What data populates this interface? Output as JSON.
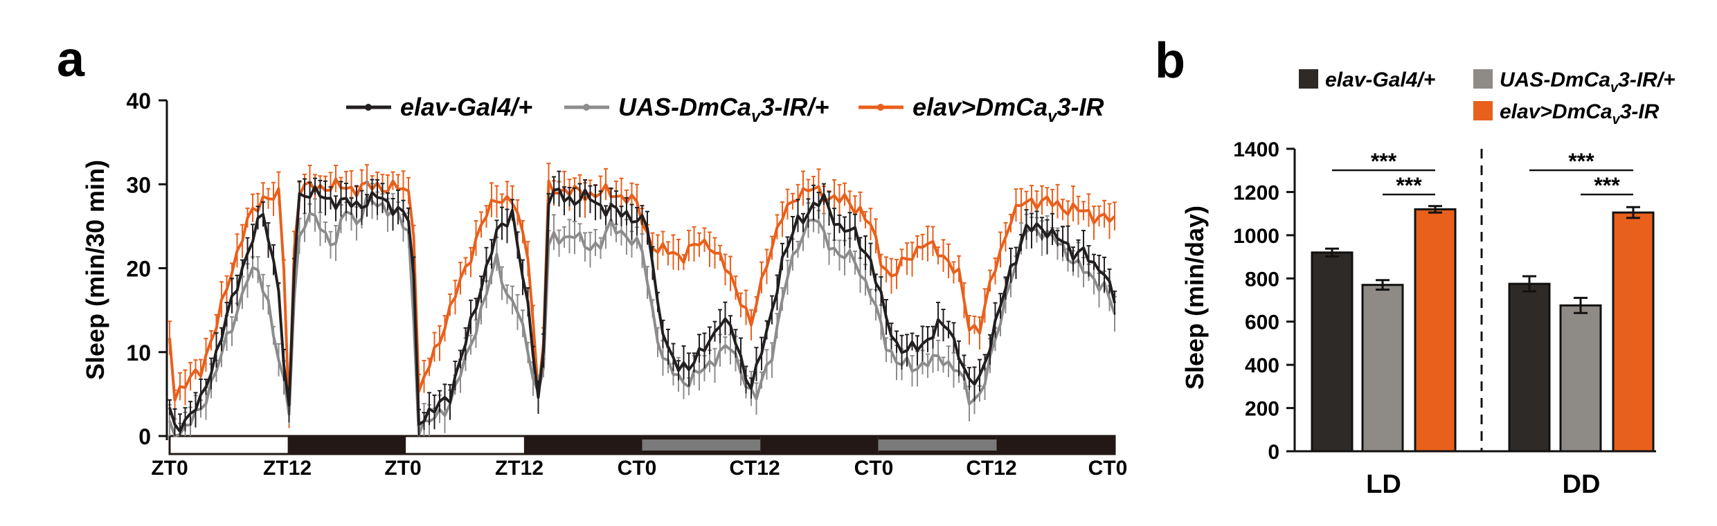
{
  "colors": {
    "axis": "#111111",
    "series_dark": "#231f20",
    "series_gray": "#8c8c8c",
    "series_orange": "#e8601c",
    "bar_dark": "#2e2a28",
    "bar_gray": "#8e8a86",
    "bar_orange": "#e8601c",
    "light_bar": "#ffffff",
    "dark_bar": "#231815",
    "subjective_day_bar": "#7a7a7a"
  },
  "panel_a": {
    "label": "a",
    "chart_data": {
      "type": "line",
      "ylabel": "Sleep (min/30 min)",
      "ylim": [
        0,
        40
      ],
      "yticks": [
        "0",
        "10",
        "20",
        "30",
        "40"
      ],
      "x_tick_labels": [
        "ZT0",
        "ZT12",
        "ZT0",
        "ZT12",
        "CT0",
        "CT12",
        "CT0",
        "CT12",
        "CT0"
      ],
      "legend": [
        {
          "name_main": "elav-Gal4/+",
          "sub": "",
          "tail": ""
        },
        {
          "name_main": "UAS-DmCa",
          "sub": "v",
          "tail": "3-IR/+"
        },
        {
          "name_main": "elav>DmCa",
          "sub": "v",
          "tail": "3-IR"
        }
      ],
      "light_dark_bar": [
        "light",
        "dark",
        "light",
        "dark",
        "subjective-day",
        "dark",
        "subjective-day",
        "dark"
      ],
      "series": [
        {
          "name": "elav-Gal4/+",
          "keyframes": [
            [
              0,
              3
            ],
            [
              0.3,
              0.5
            ],
            [
              1.5,
              2
            ],
            [
              3.0,
              4
            ],
            [
              4.5,
              10
            ],
            [
              6,
              16
            ],
            [
              7.5,
              22
            ],
            [
              9,
              26.5
            ],
            [
              10.5,
              18
            ],
            [
              11.0,
              8
            ],
            [
              11.5,
              3
            ],
            [
              11.8,
              12
            ],
            [
              12.2,
              28.5
            ],
            [
              13,
              29
            ],
            [
              14,
              28.8
            ],
            [
              16,
              28
            ],
            [
              18,
              27.5
            ],
            [
              20,
              28.5
            ],
            [
              22,
              27
            ],
            [
              23.2,
              25.5
            ],
            [
              23.7,
              14
            ],
            [
              24.0,
              2
            ],
            [
              25.5,
              3
            ],
            [
              27,
              5
            ],
            [
              28.5,
              11
            ],
            [
              30,
              18
            ],
            [
              31.5,
              24
            ],
            [
              33,
              26.8
            ],
            [
              34.5,
              15
            ],
            [
              35.5,
              5
            ],
            [
              35.9,
              4
            ],
            [
              36.3,
              28
            ],
            [
              37.5,
              29
            ],
            [
              39,
              28
            ],
            [
              40.5,
              28.5
            ],
            [
              42,
              27
            ],
            [
              44,
              26.5
            ],
            [
              46,
              25
            ],
            [
              47,
              16
            ],
            [
              48,
              10
            ],
            [
              49,
              8
            ],
            [
              50.5,
              9
            ],
            [
              52,
              11
            ],
            [
              53,
              14
            ],
            [
              54,
              13
            ],
            [
              55,
              9
            ],
            [
              56,
              6
            ],
            [
              57.5,
              12
            ],
            [
              59,
              21
            ],
            [
              60.5,
              25.5
            ],
            [
              62,
              27.5
            ],
            [
              63,
              28
            ],
            [
              64.5,
              25
            ],
            [
              66,
              24
            ],
            [
              67.5,
              21
            ],
            [
              69,
              14
            ],
            [
              70,
              11
            ],
            [
              71,
              10
            ],
            [
              72.5,
              11
            ],
            [
              74,
              13
            ],
            [
              75,
              13
            ],
            [
              76,
              10
            ],
            [
              77,
              6
            ],
            [
              78,
              7
            ],
            [
              79.5,
              13
            ],
            [
              81,
              20
            ],
            [
              82.5,
              24.5
            ],
            [
              84,
              25
            ],
            [
              85.5,
              23.5
            ],
            [
              87,
              22
            ],
            [
              88,
              22
            ],
            [
              89,
              20
            ],
            [
              90,
              20
            ],
            [
              91,
              16
            ]
          ]
        },
        {
          "name": "UAS-DmCav3-IR/+",
          "keyframes": [
            [
              0,
              1
            ],
            [
              0.3,
              0
            ],
            [
              1.5,
              1
            ],
            [
              3.0,
              3
            ],
            [
              4.5,
              8
            ],
            [
              6,
              13
            ],
            [
              7.5,
              19
            ],
            [
              8.5,
              19.5
            ],
            [
              9.5,
              16
            ],
            [
              10.5,
              9
            ],
            [
              11.5,
              3
            ],
            [
              11.8,
              10
            ],
            [
              12.2,
              23
            ],
            [
              13,
              25.5
            ],
            [
              14,
              26
            ],
            [
              15,
              24
            ],
            [
              16,
              23
            ],
            [
              17,
              27
            ],
            [
              18,
              25.5
            ],
            [
              19,
              28
            ],
            [
              20,
              27.5
            ],
            [
              21.5,
              27
            ],
            [
              23,
              24
            ],
            [
              23.6,
              12
            ],
            [
              24.0,
              1
            ],
            [
              25.5,
              2
            ],
            [
              27,
              4
            ],
            [
              28.5,
              9
            ],
            [
              30,
              15
            ],
            [
              31.5,
              21
            ],
            [
              32.5,
              17
            ],
            [
              33.5,
              15
            ],
            [
              34.5,
              10
            ],
            [
              35.5,
              5
            ],
            [
              35.9,
              4
            ],
            [
              36.3,
              22
            ],
            [
              37,
              23.5
            ],
            [
              39,
              24
            ],
            [
              40,
              22.5
            ],
            [
              41.5,
              23
            ],
            [
              42.5,
              25
            ],
            [
              44,
              24
            ],
            [
              45.5,
              22
            ],
            [
              46.5,
              15
            ],
            [
              47.5,
              9
            ],
            [
              49,
              7
            ],
            [
              50,
              6.5
            ],
            [
              51.5,
              8
            ],
            [
              53,
              10
            ],
            [
              54,
              10.5
            ],
            [
              55,
              8
            ],
            [
              56,
              5
            ],
            [
              56.5,
              4.5
            ],
            [
              58,
              10
            ],
            [
              59.5,
              19
            ],
            [
              61,
              24.5
            ],
            [
              62,
              26
            ],
            [
              63,
              24
            ],
            [
              64.5,
              21.5
            ],
            [
              66,
              21
            ],
            [
              67.5,
              17
            ],
            [
              69,
              11
            ],
            [
              70,
              9
            ],
            [
              71.5,
              8
            ],
            [
              73,
              9
            ],
            [
              74.5,
              9
            ],
            [
              76,
              8
            ],
            [
              77,
              4
            ],
            [
              78,
              5
            ],
            [
              79.5,
              11
            ],
            [
              81,
              19
            ],
            [
              82.5,
              24.5
            ],
            [
              84,
              24.5
            ],
            [
              85.5,
              23
            ],
            [
              87,
              21
            ],
            [
              88.5,
              19
            ],
            [
              90,
              18
            ],
            [
              91,
              14.5
            ]
          ]
        },
        {
          "name": "elav>DmCav3-IR",
          "keyframes": [
            [
              0,
              12
            ],
            [
              0.5,
              5
            ],
            [
              1.5,
              6
            ],
            [
              3.0,
              8
            ],
            [
              4.5,
              13
            ],
            [
              6,
              20
            ],
            [
              7.5,
              25.5
            ],
            [
              9,
              28.5
            ],
            [
              10.5,
              28.5
            ],
            [
              11.0,
              20
            ],
            [
              11.5,
              3
            ],
            [
              11.8,
              15
            ],
            [
              12.2,
              29.3
            ],
            [
              14,
              29.7
            ],
            [
              16,
              29.7
            ],
            [
              18,
              29.5
            ],
            [
              20,
              29.8
            ],
            [
              22,
              29.5
            ],
            [
              23.2,
              29
            ],
            [
              23.7,
              22
            ],
            [
              24.0,
              5
            ],
            [
              25.5,
              10
            ],
            [
              27,
              15
            ],
            [
              28.5,
              20
            ],
            [
              30,
              25
            ],
            [
              31.5,
              28.5
            ],
            [
              33,
              28
            ],
            [
              34.5,
              22
            ],
            [
              35.5,
              5
            ],
            [
              35.9,
              5
            ],
            [
              36.3,
              29.5
            ],
            [
              38,
              29.3
            ],
            [
              40,
              28.8
            ],
            [
              42,
              29
            ],
            [
              44,
              28.5
            ],
            [
              45,
              27.5
            ],
            [
              46,
              24
            ],
            [
              47,
              22
            ],
            [
              48,
              22
            ],
            [
              49.5,
              21.5
            ],
            [
              51,
              23
            ],
            [
              52,
              23
            ],
            [
              53,
              21
            ],
            [
              54,
              19
            ],
            [
              55,
              16.5
            ],
            [
              56,
              13
            ],
            [
              57.5,
              21
            ],
            [
              59,
              26
            ],
            [
              60.5,
              29
            ],
            [
              62,
              29.3
            ],
            [
              63.5,
              28.5
            ],
            [
              65,
              28
            ],
            [
              66.5,
              27
            ],
            [
              67.5,
              25
            ],
            [
              68.5,
              21
            ],
            [
              69.5,
              19
            ],
            [
              71,
              21
            ],
            [
              72.5,
              23
            ],
            [
              74,
              22
            ],
            [
              75,
              21
            ],
            [
              76,
              19
            ],
            [
              77,
              13
            ],
            [
              78,
              13
            ],
            [
              79.5,
              20
            ],
            [
              81,
              26
            ],
            [
              82.5,
              28
            ],
            [
              84,
              28
            ],
            [
              85.5,
              27.5
            ],
            [
              87,
              27
            ],
            [
              88.5,
              26.5
            ],
            [
              90,
              26
            ],
            [
              91,
              25.5
            ]
          ]
        }
      ]
    }
  },
  "panel_b": {
    "label": "b",
    "chart_data": {
      "type": "bar",
      "ylabel": "Sleep (min/day)",
      "ylim": [
        0,
        1400
      ],
      "yticks": [
        "0",
        "200",
        "400",
        "600",
        "800",
        "1000",
        "1200",
        "1400"
      ],
      "categories": [
        "LD",
        "DD"
      ],
      "legend": [
        {
          "name_main": "elav-Gal4/+",
          "sub": "",
          "tail": ""
        },
        {
          "name_main": "UAS-DmCa",
          "sub": "v",
          "tail": "3-IR/+"
        },
        {
          "name_main": "elav>DmCa",
          "sub": "v",
          "tail": "3-IR"
        }
      ],
      "series": [
        {
          "name": "elav-Gal4/+",
          "values": [
            920,
            775
          ],
          "errors": [
            18,
            35
          ]
        },
        {
          "name": "UAS-DmCav3-IR/+",
          "values": [
            770,
            675
          ],
          "errors": [
            22,
            35
          ]
        },
        {
          "name": "elav>DmCav3-IR",
          "values": [
            1120,
            1105
          ],
          "errors": [
            15,
            25
          ]
        }
      ],
      "significance": [
        "***",
        "***",
        "***",
        "***"
      ]
    }
  }
}
